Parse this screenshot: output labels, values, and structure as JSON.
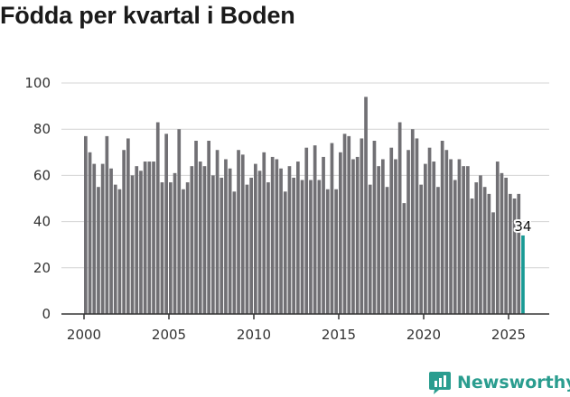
{
  "chart_data": {
    "type": "bar",
    "title": "Födda per kvartal i Boden",
    "xlabel": "",
    "ylabel": "",
    "ylim": [
      0,
      100
    ],
    "yticks": [
      0,
      20,
      40,
      60,
      80,
      100
    ],
    "xticks": [
      2000,
      2005,
      2010,
      2015,
      2020,
      2025
    ],
    "start_year": 2000,
    "bar_color": "#717074",
    "highlight_color": "#1a9a95",
    "highlight_label": "34",
    "values": [
      77,
      70,
      65,
      55,
      65,
      77,
      63,
      56,
      54,
      71,
      76,
      60,
      64,
      62,
      66,
      66,
      66,
      83,
      57,
      78,
      57,
      61,
      80,
      54,
      57,
      64,
      75,
      66,
      64,
      75,
      60,
      71,
      59,
      67,
      63,
      53,
      71,
      69,
      56,
      59,
      65,
      62,
      70,
      57,
      68,
      67,
      63,
      53,
      64,
      59,
      66,
      58,
      72,
      58,
      73,
      58,
      68,
      54,
      74,
      54,
      70,
      78,
      77,
      67,
      68,
      76,
      94,
      56,
      75,
      64,
      67,
      55,
      72,
      67,
      83,
      48,
      71,
      80,
      76,
      56,
      65,
      72,
      66,
      55,
      75,
      71,
      67,
      58,
      67,
      64,
      64,
      50,
      57,
      60,
      55,
      52,
      44,
      66,
      61,
      59,
      52,
      50,
      52,
      34
    ]
  },
  "brand": {
    "name": "Newsworthy",
    "color": "#2a9d8f"
  }
}
